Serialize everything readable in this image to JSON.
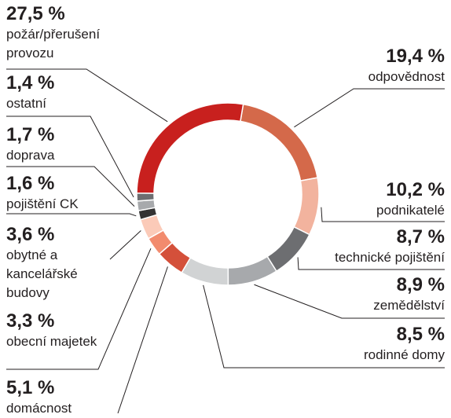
{
  "chart_data": {
    "type": "donut",
    "categories": [
      "odpovědnost",
      "podnikatelé",
      "technické pojištění",
      "zemědělství",
      "rodinné domy",
      "domácnost",
      "obecní majetek",
      "obytné a kancelářské budovy",
      "pojištění CK",
      "doprava",
      "ostatní",
      "požár/přerušení provozu"
    ],
    "values": [
      19.4,
      10.2,
      8.7,
      8.9,
      8.5,
      5.1,
      3.3,
      3.6,
      1.6,
      1.7,
      1.4,
      27.5
    ],
    "value_labels": [
      "19,4 %",
      "10,2 %",
      "8,7 %",
      "8,9 %",
      "8,5 %",
      "5,1 %",
      "3,3 %",
      "3,6 %",
      "1,6 %",
      "1,7 %",
      "1,4 %",
      "27,5 %"
    ],
    "colors": [
      "#d4694a",
      "#f2b39e",
      "#6d6e71",
      "#a7a9ac",
      "#d1d3d4",
      "#d4503a",
      "#f28b6e",
      "#fbcab8",
      "#333333",
      "#a7a9ac",
      "#6d6e71",
      "#c8201e"
    ]
  }
}
